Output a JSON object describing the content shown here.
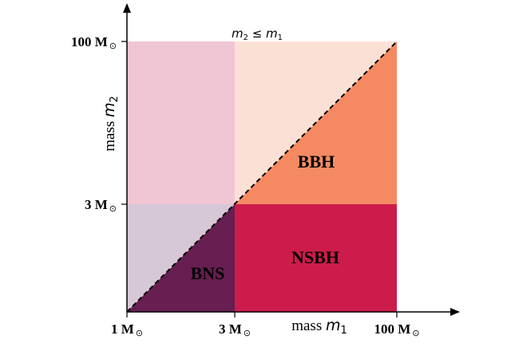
{
  "regions": [
    {
      "id": "upper-left",
      "label": "",
      "color": "#f0c6d4"
    },
    {
      "id": "upper-middle",
      "label": "",
      "color": "#fbe0d6"
    },
    {
      "id": "bbh",
      "label": "BBH",
      "color": "#f58a62"
    },
    {
      "id": "lower-left-upper",
      "label": "",
      "color": "#d7c8d7"
    },
    {
      "id": "bns",
      "label": "BNS",
      "color": "#671e50"
    },
    {
      "id": "nsbh",
      "label": "NSBH",
      "color": "#cd1c4c"
    }
  ],
  "labels": {
    "bbh": "BBH",
    "bns": "BNS",
    "nsbh": "NSBH"
  },
  "x_axis": {
    "title_prefix": "mass ",
    "symbol": "m",
    "subscript": "1",
    "ticks": [
      {
        "value": "1 M",
        "sun": "⊙"
      },
      {
        "value": "3 M",
        "sun": "⊙"
      },
      {
        "value": "100 M",
        "sun": "⊙"
      }
    ]
  },
  "y_axis": {
    "title_prefix": "mass ",
    "symbol": "m",
    "subscript": "2",
    "ticks": [
      {
        "value": "3 M",
        "sun": "⊙"
      },
      {
        "value": "100 M",
        "sun": "⊙"
      }
    ]
  },
  "top_annotation": {
    "m": "m",
    "sub2": "2",
    "leq": " ≤ ",
    "sub1": "1"
  }
}
